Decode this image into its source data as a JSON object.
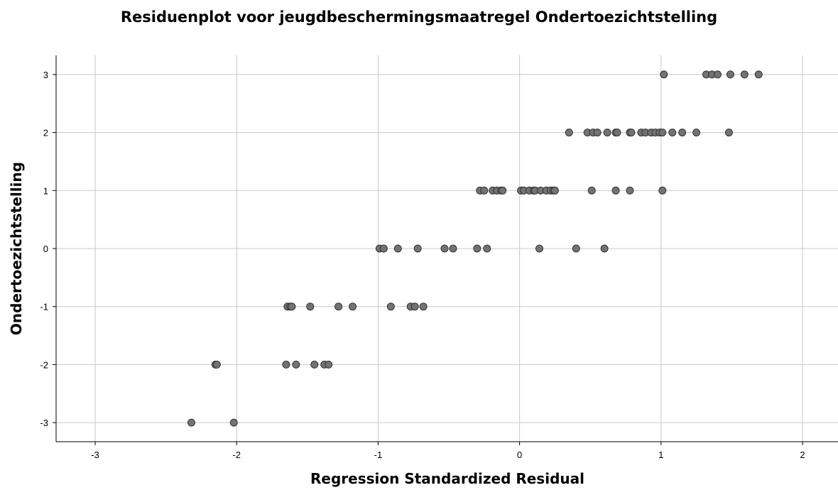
{
  "chart_data": {
    "type": "scatter",
    "title": "Residuenplot voor jeugdbeschermingsmaatregel Ondertoezichtstelling",
    "xlabel": "Regression Standardized Residual",
    "ylabel": "Ondertoezichtstelling",
    "xlim": [
      -3.3,
      2.25
    ],
    "ylim": [
      -3.35,
      3.35
    ],
    "xticks": [
      -3,
      -2,
      -1,
      0,
      1,
      2
    ],
    "yticks": [
      3,
      2,
      1,
      0,
      -1,
      -2,
      -3
    ],
    "xtick_labels": [
      "-3",
      "-2",
      "-1",
      "0",
      "1",
      "2"
    ],
    "ytick_labels": [
      "3",
      "2",
      "1",
      "0",
      "-1",
      "-2",
      "-3"
    ],
    "grid": true,
    "marker_color": "#737373",
    "marker_edge_color": "#333333",
    "points": [
      {
        "x": 1.02,
        "y": 3
      },
      {
        "x": 1.32,
        "y": 3
      },
      {
        "x": 1.36,
        "y": 3
      },
      {
        "x": 1.4,
        "y": 3
      },
      {
        "x": 1.49,
        "y": 3
      },
      {
        "x": 1.59,
        "y": 3
      },
      {
        "x": 1.69,
        "y": 3
      },
      {
        "x": 0.35,
        "y": 2
      },
      {
        "x": 0.48,
        "y": 2
      },
      {
        "x": 0.52,
        "y": 2
      },
      {
        "x": 0.55,
        "y": 2
      },
      {
        "x": 0.62,
        "y": 2
      },
      {
        "x": 0.68,
        "y": 2
      },
      {
        "x": 0.69,
        "y": 2
      },
      {
        "x": 0.78,
        "y": 2
      },
      {
        "x": 0.79,
        "y": 2
      },
      {
        "x": 0.86,
        "y": 2
      },
      {
        "x": 0.89,
        "y": 2
      },
      {
        "x": 0.93,
        "y": 2
      },
      {
        "x": 0.96,
        "y": 2
      },
      {
        "x": 0.99,
        "y": 2
      },
      {
        "x": 1.01,
        "y": 2
      },
      {
        "x": 1.08,
        "y": 2
      },
      {
        "x": 1.15,
        "y": 2
      },
      {
        "x": 1.25,
        "y": 2
      },
      {
        "x": 1.48,
        "y": 2
      },
      {
        "x": -0.28,
        "y": 1
      },
      {
        "x": -0.25,
        "y": 1
      },
      {
        "x": -0.19,
        "y": 1
      },
      {
        "x": -0.16,
        "y": 1
      },
      {
        "x": -0.13,
        "y": 1
      },
      {
        "x": -0.12,
        "y": 1
      },
      {
        "x": 0.01,
        "y": 1
      },
      {
        "x": 0.03,
        "y": 1
      },
      {
        "x": 0.07,
        "y": 1
      },
      {
        "x": 0.1,
        "y": 1
      },
      {
        "x": 0.11,
        "y": 1
      },
      {
        "x": 0.15,
        "y": 1
      },
      {
        "x": 0.19,
        "y": 1
      },
      {
        "x": 0.22,
        "y": 1
      },
      {
        "x": 0.24,
        "y": 1
      },
      {
        "x": 0.25,
        "y": 1
      },
      {
        "x": 0.51,
        "y": 1
      },
      {
        "x": 0.68,
        "y": 1
      },
      {
        "x": 0.78,
        "y": 1
      },
      {
        "x": 1.01,
        "y": 1
      },
      {
        "x": -0.99,
        "y": 0
      },
      {
        "x": -0.96,
        "y": 0
      },
      {
        "x": -0.86,
        "y": 0
      },
      {
        "x": -0.72,
        "y": 0
      },
      {
        "x": -0.53,
        "y": 0
      },
      {
        "x": -0.47,
        "y": 0
      },
      {
        "x": -0.3,
        "y": 0
      },
      {
        "x": -0.23,
        "y": 0
      },
      {
        "x": 0.14,
        "y": 0
      },
      {
        "x": 0.4,
        "y": 0
      },
      {
        "x": 0.6,
        "y": 0
      },
      {
        "x": -1.64,
        "y": -1
      },
      {
        "x": -1.62,
        "y": -1
      },
      {
        "x": -1.61,
        "y": -1
      },
      {
        "x": -1.48,
        "y": -1
      },
      {
        "x": -1.28,
        "y": -1
      },
      {
        "x": -1.18,
        "y": -1
      },
      {
        "x": -0.91,
        "y": -1
      },
      {
        "x": -0.77,
        "y": -1
      },
      {
        "x": -0.74,
        "y": -1
      },
      {
        "x": -0.68,
        "y": -1
      },
      {
        "x": -2.15,
        "y": -2
      },
      {
        "x": -2.14,
        "y": -2
      },
      {
        "x": -1.65,
        "y": -2
      },
      {
        "x": -1.58,
        "y": -2
      },
      {
        "x": -1.45,
        "y": -2
      },
      {
        "x": -1.38,
        "y": -2
      },
      {
        "x": -1.35,
        "y": -2
      },
      {
        "x": -2.32,
        "y": -3
      },
      {
        "x": -2.02,
        "y": -3
      }
    ]
  }
}
